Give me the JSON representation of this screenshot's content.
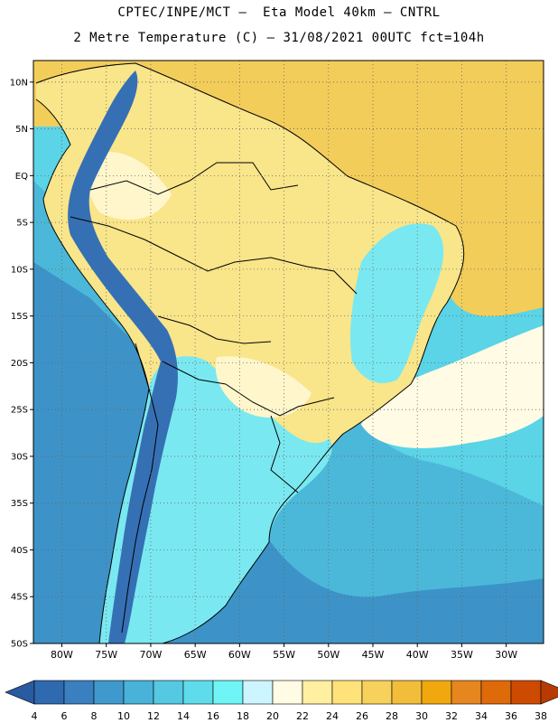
{
  "header": {
    "line1": "CPTEC/INPE/MCT –  Eta Model 40km – CNTRL",
    "line2": "2 Metre Temperature (C) – 31/08/2021 00UTC fct=104h"
  },
  "axes": {
    "lat_labels": [
      "10N",
      "5N",
      "EQ",
      "5S",
      "10S",
      "15S",
      "20S",
      "25S",
      "30S",
      "35S",
      "40S",
      "45S",
      "50S"
    ],
    "lat_values": [
      10,
      5,
      0,
      -5,
      -10,
      -15,
      -20,
      -25,
      -30,
      -35,
      -40,
      -45,
      -50
    ],
    "lon_labels": [
      "80W",
      "75W",
      "70W",
      "65W",
      "60W",
      "55W",
      "50W",
      "45W",
      "40W",
      "35W",
      "30W"
    ],
    "lon_values": [
      -80,
      -75,
      -70,
      -65,
      -60,
      -55,
      -50,
      -45,
      -40,
      -35,
      -30
    ],
    "lat_range": [
      -50,
      12.3
    ],
    "lon_range": [
      -83.2,
      -25.8
    ],
    "grid": "dotted"
  },
  "colorbar": {
    "labels": [
      "4",
      "6",
      "8",
      "10",
      "12",
      "14",
      "16",
      "18",
      "20",
      "22",
      "24",
      "26",
      "28",
      "30",
      "32",
      "34",
      "36",
      "38"
    ],
    "colors": [
      "#2f6ab0",
      "#3a7fbf",
      "#3f99cc",
      "#49b2d8",
      "#55c8e2",
      "#5fdceb",
      "#6ff5f5",
      "#ccf5ff",
      "#fffbe4",
      "#ffefa0",
      "#ffe27a",
      "#f6d25c",
      "#f1bd3a",
      "#f0a80e",
      "#e6861e",
      "#df6a0a",
      "#cc4b00"
    ],
    "left_arrow_color": "#2a5aa0",
    "right_arrow_color": "#b83a00"
  },
  "palette": {
    "ocean_warm": "#f3cd5a",
    "ocean_mid": "#5ad4e6",
    "ocean_cool": "#4bb8d9",
    "ocean_cold": "#3d93c7",
    "land_warm": "#f9e58a",
    "land_pale": "#fff6cc",
    "land_cool": "#7ae8f0",
    "andes": "#3570b5",
    "border": "#000000"
  }
}
